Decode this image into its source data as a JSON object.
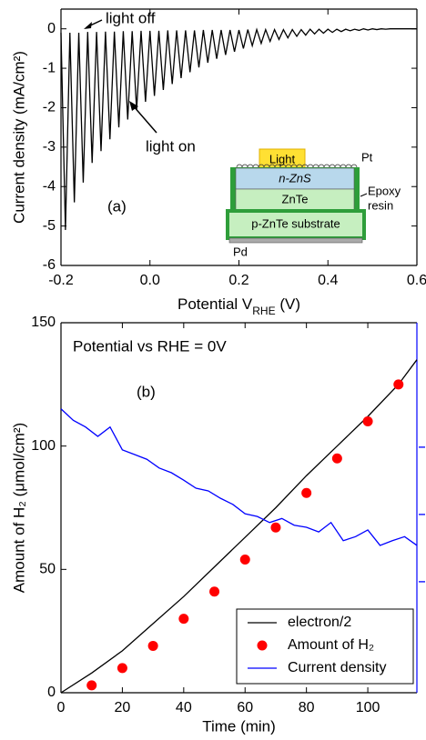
{
  "chart_data": [
    {
      "type": "line",
      "xlabel": [
        "Potential V",
        "RHE",
        " (V)"
      ],
      "ylabel": "Current density (mA/cm²)",
      "xlim": [
        -0.2,
        0.6
      ],
      "xticks": [
        -0.2,
        {
          "value": 0,
          "label": "0.0"
        },
        0.2,
        0.4,
        0.6
      ],
      "ylim": [
        -6,
        0.5
      ],
      "yticks": [
        -6,
        -5,
        -4,
        -3,
        -2,
        -1,
        0
      ],
      "annotations": [
        "light off",
        "light on"
      ],
      "panel_label": "(a)",
      "inset": {
        "arrow": "Light",
        "top_contact": "Pt",
        "layers": [
          "n-ZnS",
          "ZnTe",
          "p-ZnTe substrate"
        ],
        "side": [
          "Epoxy",
          "resin"
        ],
        "bottom_contact": "Pd"
      },
      "series": [
        {
          "color": "#000000",
          "style": "line",
          "x": [
            -0.2,
            -0.19,
            -0.18,
            -0.17,
            -0.16,
            -0.15,
            -0.14,
            -0.13,
            -0.12,
            -0.11,
            -0.1,
            -0.09,
            -0.08,
            -0.07,
            -0.06,
            -0.05,
            -0.04,
            -0.03,
            -0.02,
            -0.01,
            0,
            0.01,
            0.02,
            0.03,
            0.04,
            0.05,
            0.06,
            0.07,
            0.08,
            0.09,
            0.1,
            0.11,
            0.12,
            0.13,
            0.14,
            0.15,
            0.16,
            0.17,
            0.18,
            0.19,
            0.2,
            0.21,
            0.22,
            0.23,
            0.24,
            0.25,
            0.26,
            0.27,
            0.28,
            0.29,
            0.3,
            0.31,
            0.32,
            0.33,
            0.34,
            0.35,
            0.36,
            0.37,
            0.38,
            0.39,
            0.4,
            0.41,
            0.42,
            0.43,
            0.44,
            0.45,
            0.46,
            0.47,
            0.48,
            0.49,
            0.5,
            0.51,
            0.52,
            0.53,
            0.54,
            0.55,
            0.56,
            0.57,
            0.58,
            0.59,
            0.6
          ],
          "values": [
            -0.1,
            -5.1,
            -0.1,
            -4.4,
            -0.1,
            -3.9,
            -0.08,
            -3.4,
            -0.08,
            -3.1,
            -0.07,
            -2.8,
            -0.07,
            -2.5,
            -0.06,
            -2.3,
            -0.06,
            -2.05,
            -0.05,
            -1.85,
            -0.05,
            -1.7,
            -0.05,
            -1.55,
            -0.04,
            -1.4,
            -0.04,
            -1.25,
            -0.04,
            -1.1,
            -0.04,
            -0.98,
            -0.03,
            -0.86,
            -0.03,
            -0.76,
            -0.03,
            -0.66,
            -0.03,
            -0.58,
            -0.03,
            -0.5,
            -0.02,
            -0.43,
            -0.02,
            -0.37,
            -0.02,
            -0.32,
            -0.02,
            -0.27,
            -0.02,
            -0.23,
            -0.02,
            -0.19,
            -0.02,
            -0.16,
            -0.01,
            -0.13,
            -0.01,
            -0.11,
            -0.01,
            -0.09,
            -0.01,
            -0.07,
            -0.01,
            -0.05,
            -0.01,
            -0.04,
            0,
            -0.03,
            0,
            -0.02,
            0,
            -0.01,
            0,
            0,
            0,
            0,
            0,
            0,
            0
          ]
        }
      ]
    },
    {
      "type": "line",
      "xlabel": "Time (min)",
      "ylabel": "Amount of H₂ (μmol/cm²)",
      "ylabel_color": "#ff0000",
      "xlim": [
        0,
        116
      ],
      "xticks": [
        0,
        20,
        40,
        60,
        80,
        100
      ],
      "ylim": [
        0,
        150
      ],
      "yticks": [
        0,
        50,
        100,
        150
      ],
      "y2lim": [
        0,
        5.5
      ],
      "y2ticks": [
        1.65,
        2.65,
        3.65
      ],
      "y2_color": "#0000ff",
      "annotation": "Potential vs RHE = 0V",
      "panel_label": "(b)",
      "legend": "lower right",
      "series": [
        {
          "name": "electron/2",
          "color": "#000000",
          "style": "line",
          "x": [
            0,
            10,
            20,
            30,
            40,
            50,
            60,
            70,
            80,
            90,
            100,
            110,
            116
          ],
          "values": [
            0,
            8,
            17,
            28,
            39,
            51,
            63,
            75,
            88,
            100,
            112,
            125,
            135
          ]
        },
        {
          "name": "Amount of H₂",
          "color": "#ff0000",
          "style": "markers",
          "x": [
            10,
            20,
            30,
            40,
            50,
            60,
            70,
            80,
            90,
            100,
            110
          ],
          "values": [
            3,
            10,
            19,
            30,
            41,
            54,
            67,
            81,
            95,
            110,
            125
          ]
        },
        {
          "name": "Current density",
          "color": "#0000ff",
          "style": "line",
          "axis": "y2",
          "x": [
            0,
            4,
            8,
            12,
            16,
            20,
            24,
            28,
            32,
            36,
            40,
            44,
            48,
            52,
            56,
            60,
            64,
            68,
            72,
            76,
            80,
            84,
            88,
            92,
            96,
            100,
            104,
            108,
            112,
            116
          ],
          "values": [
            4.22,
            4.05,
            3.95,
            3.81,
            3.95,
            3.61,
            3.54,
            3.47,
            3.34,
            3.27,
            3.16,
            3.04,
            3.0,
            2.89,
            2.8,
            2.66,
            2.62,
            2.53,
            2.59,
            2.49,
            2.46,
            2.39,
            2.53,
            2.26,
            2.32,
            2.42,
            2.19,
            2.26,
            2.32,
            2.19
          ]
        }
      ]
    }
  ]
}
